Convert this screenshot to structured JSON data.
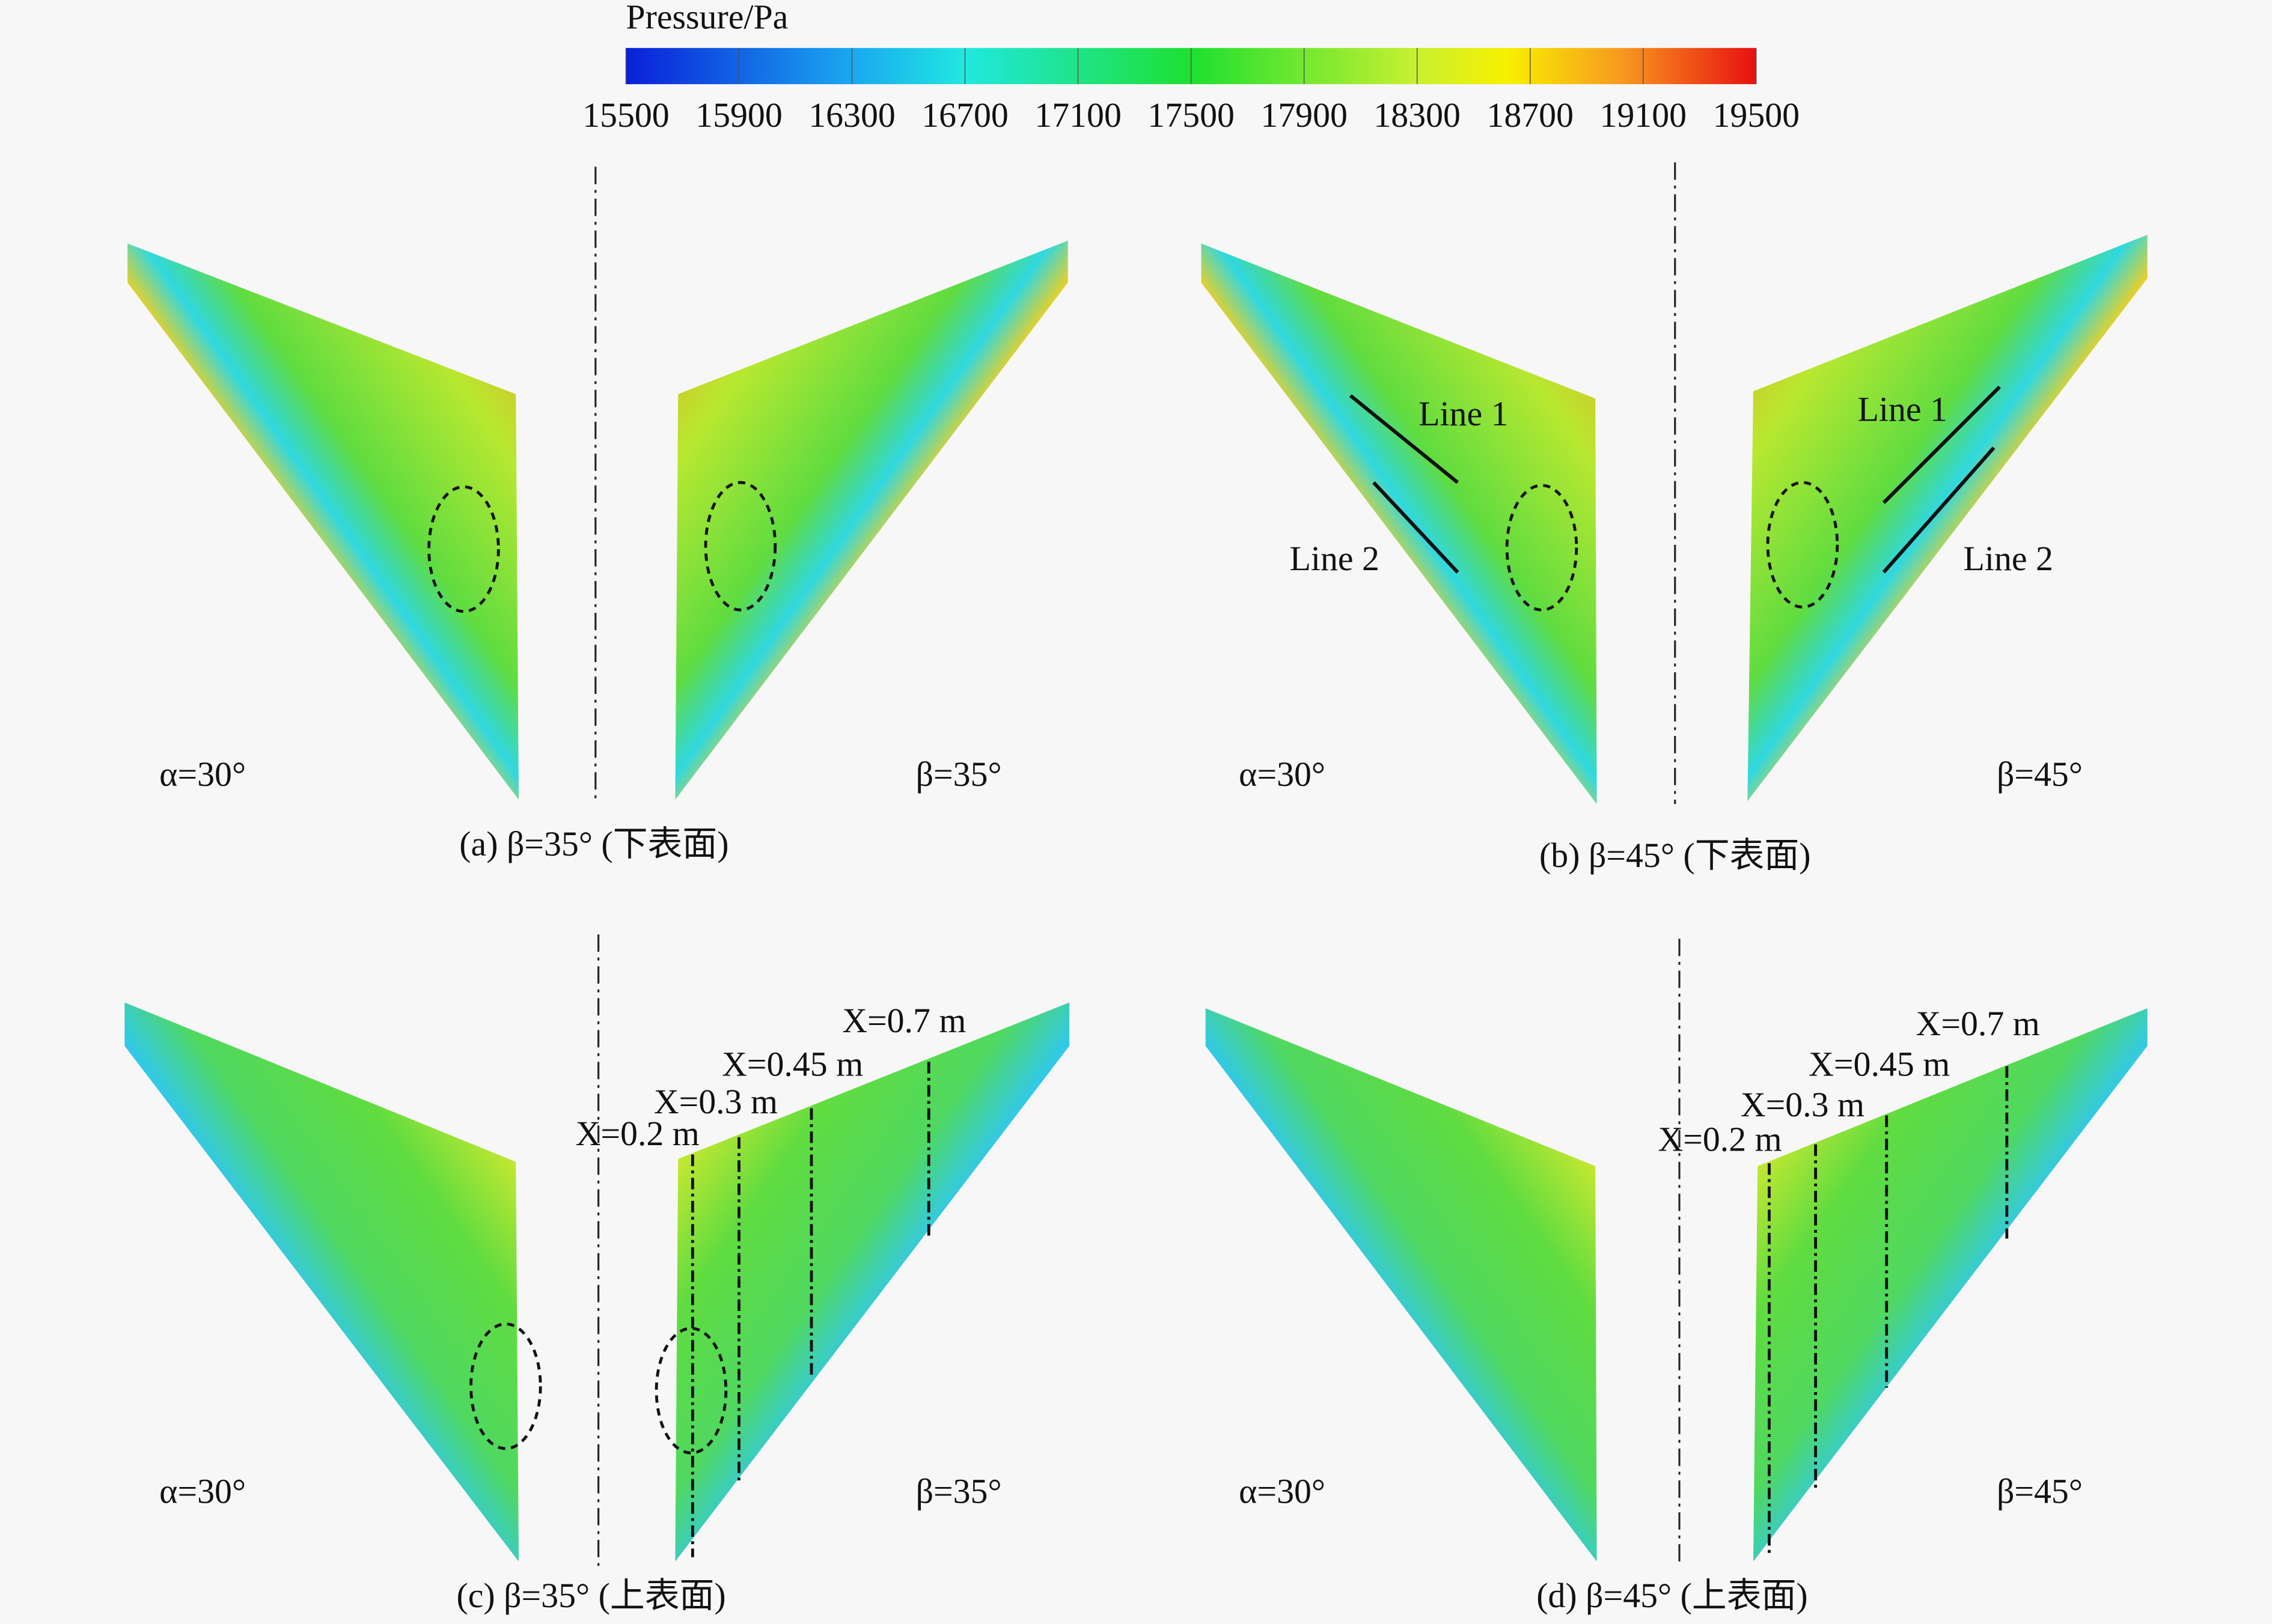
{
  "colorbar": {
    "title": "Pressure/Pa",
    "range": [
      15500,
      19500
    ],
    "ticks": [
      15500,
      15900,
      16300,
      16700,
      17100,
      17500,
      17900,
      18300,
      18700,
      19100,
      19500
    ]
  },
  "panels": [
    {
      "caption": "(a) β=35° (下表面)",
      "left_label": "α=30°",
      "right_label": "β=35°"
    },
    {
      "caption": "(b) β=45° (下表面)",
      "left_label": "α=30°",
      "right_label": "β=45°",
      "annotations": [
        "Line 1",
        "Line 2",
        "Line 1",
        "Line 2"
      ]
    },
    {
      "caption": "(c) β=35° (上表面)",
      "left_label": "α=30°",
      "right_label": "β=35°",
      "annotations": [
        "X=0.2 m",
        "X=0.3 m",
        "X=0.45 m",
        "X=0.7 m"
      ]
    },
    {
      "caption": "(d) β=45° (上表面)",
      "left_label": "α=30°",
      "right_label": "β=45°",
      "annotations": [
        "X=0.2 m",
        "X=0.3 m",
        "X=0.45 m",
        "X=0.7 m"
      ]
    }
  ]
}
